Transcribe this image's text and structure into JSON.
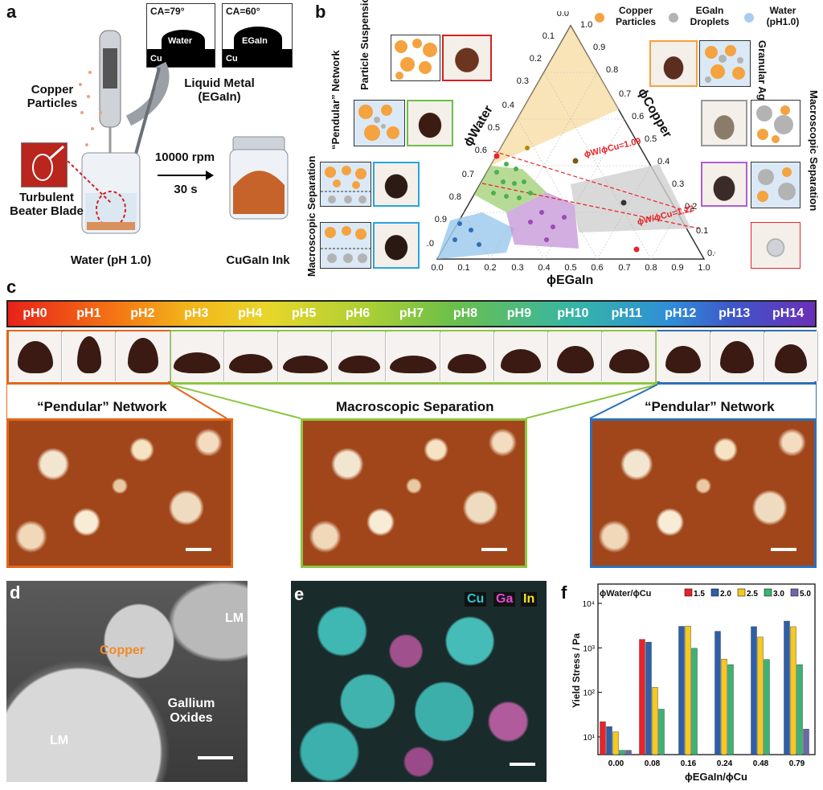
{
  "panels": {
    "a": {
      "letter": "a",
      "ca_cu": "CA=79°",
      "ca_egain": "CA=60°",
      "water": "Water",
      "egain": "EGaIn",
      "cu": "Cu",
      "copper_particles": "Copper Particles",
      "liquid_metal": "Liquid Metal (EGaIn)",
      "turbulent": "Turbulent Beater Blade",
      "rpm": "10000 rpm",
      "time": "30 s",
      "water_ph": "Water (pH 1.0)",
      "ink": "CuGaIn Ink"
    },
    "b": {
      "letter": "b",
      "particle_suspension": "Particle Suspension",
      "pendular_network": "“Pendular” Network",
      "macro_sep_left": "Macroscopic Separation",
      "granular_aggregate": "Granular Aggregate",
      "macro_sep_right": "Macroscopic Separation",
      "legend": [
        "Copper Particles",
        "EGaIn Droplets",
        "Water (pH1.0)"
      ],
      "legend_colors": [
        "#f4a340",
        "#b3b3b3",
        "#a9cdee"
      ],
      "axis_water": "ϕWater",
      "axis_copper": "ϕCopper",
      "axis_egain": "ϕEGaIn",
      "ratio1": "ϕW/ϕCu=1.09",
      "ratio2": "ϕW/ϕCu=1.22",
      "ticks": [
        "0.0",
        "0.1",
        "0.2",
        "0.3",
        "0.4",
        "0.5",
        "0.6",
        "0.7",
        "0.8",
        "0.9",
        "1.0"
      ]
    },
    "c": {
      "letter": "c",
      "ph_labels": [
        "pH0",
        "pH1",
        "pH2",
        "pH3",
        "pH4",
        "pH5",
        "pH6",
        "pH7",
        "pH8",
        "pH9",
        "pH10",
        "pH11",
        "pH12",
        "pH13",
        "pH14"
      ],
      "left": "“Pendular” Network",
      "middle": "Macroscopic Separation",
      "right": "“Pendular” Network"
    },
    "d": {
      "letter": "d",
      "lm1": "LM",
      "lm2": "LM",
      "copper": "Copper",
      "gallium": "Gallium Oxides"
    },
    "e": {
      "letter": "e",
      "cu": "Cu",
      "ga": "Ga",
      "in": "In"
    },
    "f": {
      "letter": "f",
      "legend_title": "ϕWater/ϕCu",
      "ylabel": "Yield Stress / Pa",
      "xlabel": "ϕEGaIn/ϕCu"
    }
  },
  "chart_data": {
    "type": "bar",
    "categories": [
      "0.00",
      "0.08",
      "0.16",
      "0.24",
      "0.48",
      "0.79"
    ],
    "series": [
      {
        "name": "1.5",
        "color": "#e8242a",
        "values": [
          22,
          1550,
          null,
          null,
          null,
          null
        ]
      },
      {
        "name": "2.0",
        "color": "#2e5fa8",
        "values": [
          17,
          1350,
          3050,
          2350,
          3000,
          4000
        ]
      },
      {
        "name": "2.5",
        "color": "#f5c91f",
        "values": [
          13,
          130,
          3100,
          560,
          1750,
          3000
        ]
      },
      {
        "name": "3.0",
        "color": "#3cb371",
        "values": [
          5,
          42,
          980,
          420,
          550,
          420
        ]
      },
      {
        "name": "5.0",
        "color": "#6b68a8",
        "values": [
          5,
          null,
          null,
          null,
          null,
          15
        ]
      }
    ],
    "xlabel": "ϕEGaIn/ϕCu",
    "ylabel": "Yield Stress / Pa",
    "yscale": "log",
    "ylim": [
      4,
      10000
    ],
    "yticks": [
      "10¹",
      "10²",
      "10³",
      "10⁴"
    ]
  }
}
